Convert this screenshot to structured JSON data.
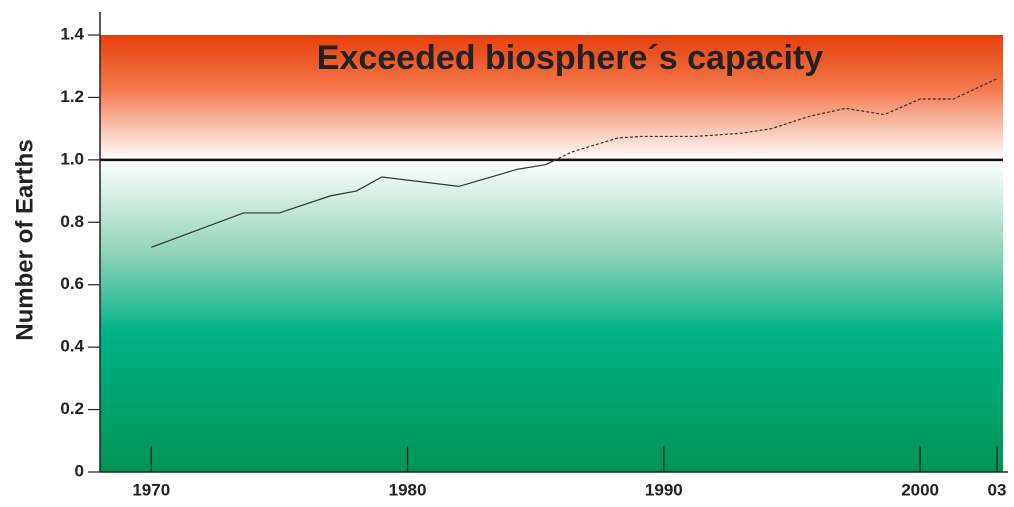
{
  "chart_data": {
    "type": "line",
    "annotation": "Exceeded biosphere´s capacity",
    "y_label": "Number of Earths",
    "x": [
      1970,
      1973.6,
      1975,
      1977,
      1978,
      1979,
      1982,
      1984.3,
      1985.4,
      1986.4,
      1988.2,
      1989.1,
      1991.2,
      1993,
      1994.2,
      1995.7,
      1997.1,
      1998.6,
      2000,
      2001.3,
      2003
    ],
    "series": [
      {
        "color": "#333333",
        "values": [
          0.72,
          0.83,
          0.83,
          0.885,
          0.9,
          0.945,
          0.915,
          0.97,
          0.985,
          1.025,
          1.07,
          1.075,
          1.075,
          1.085,
          1.1,
          1.14,
          1.165,
          1.145,
          1.195,
          1.195,
          1.26
        ]
      }
    ],
    "reference_line": 1,
    "xlim": [
      1968,
      2003
    ],
    "ylim": [
      0,
      1.4
    ],
    "xticks": [
      1970,
      1980,
      1990,
      2000,
      {
        "value": 2003,
        "label": "03"
      }
    ],
    "yticks": [
      0,
      0.2,
      0.4,
      0.6,
      0.8,
      {
        "value": 1,
        "label": "1.0"
      },
      1.2,
      1.4
    ]
  }
}
